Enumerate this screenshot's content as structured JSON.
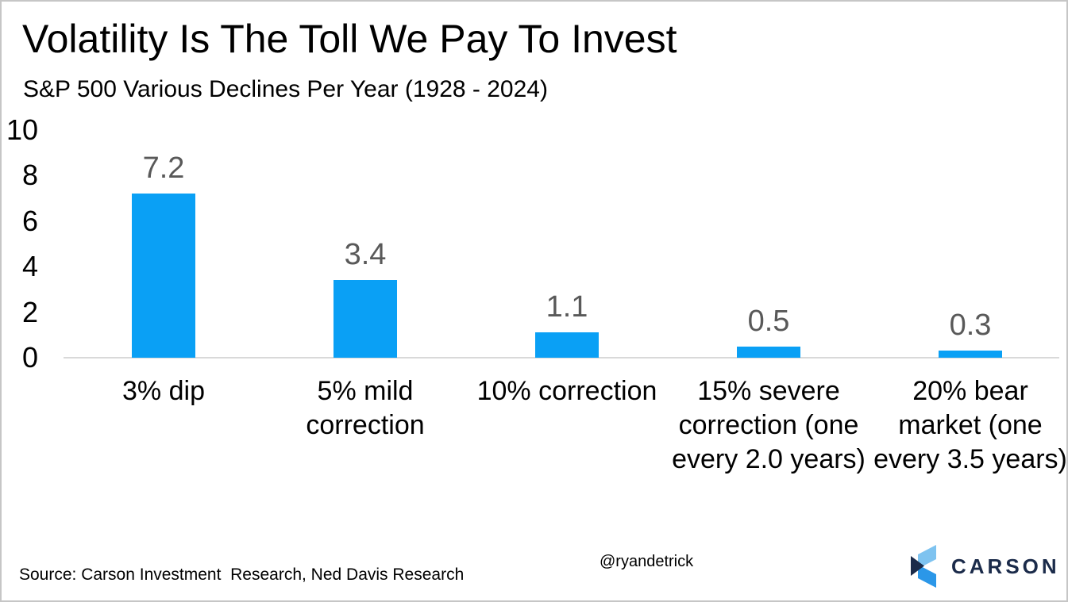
{
  "chart_data": {
    "type": "bar",
    "title": "Volatility Is The Toll We Pay To Invest",
    "subtitle": "S&P 500 Various Declines Per Year (1928 - 2024)",
    "categories": [
      "3% dip",
      "5% mild correction",
      "10% correction",
      "15% severe correction (one every 2.0 years)",
      "20% bear market (one every 3.5 years)"
    ],
    "values": [
      7.2,
      3.4,
      1.1,
      0.5,
      0.3
    ],
    "value_labels": [
      "7.2",
      "3.4",
      "1.1",
      "0.5",
      "0.3"
    ],
    "xlabel": "",
    "ylabel": "",
    "ylim": [
      0,
      10
    ],
    "yticks": [
      10,
      8,
      6,
      4,
      2,
      0
    ],
    "grid": false,
    "legend": false,
    "bar_color": "#0aa0f5",
    "value_label_color": "#595959",
    "axis_line_color": "#d9d9d9",
    "tick_label_color": "#000000"
  },
  "footer": {
    "source": "Source: Carson Investment  Research, Ned Davis Research",
    "handle": "@ryandetrick",
    "logo": {
      "text": "CARSON",
      "navy": "#1b2b4a",
      "light_blue": "#7ec3f0",
      "mid_blue": "#2b97e8"
    }
  }
}
